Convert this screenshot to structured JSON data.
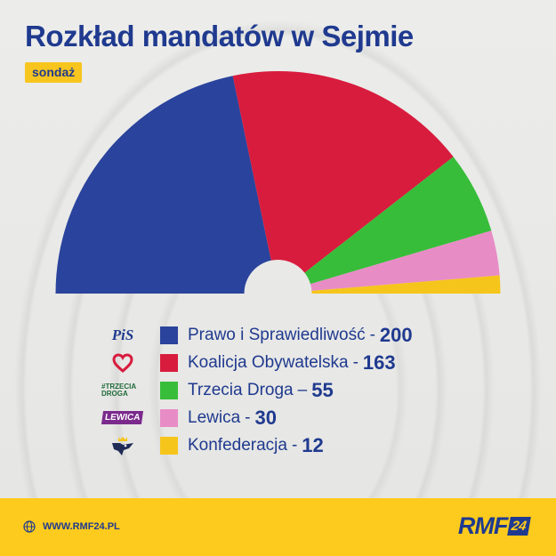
{
  "title": "Rozkład mandatów w Sejmie",
  "badge": "sondaż",
  "chart_data": {
    "type": "pie",
    "variant": "semicircle",
    "total": 460,
    "series": [
      {
        "name": "Prawo i Sprawiedliwość",
        "separator": "-",
        "value": 200,
        "color": "#2a439c",
        "logo_icon": "pis-logo",
        "logo_text": "PiS"
      },
      {
        "name": "Koalicja Obywatelska",
        "separator": "-",
        "value": 163,
        "color": "#d81c3e",
        "logo_icon": "ko-heart-logo",
        "logo_text": ""
      },
      {
        "name": "Trzecia Droga",
        "separator": "–",
        "value": 55,
        "color": "#37bd3a",
        "logo_icon": "trzecia-droga-logo",
        "logo_text": "#TRZECIA DROGA"
      },
      {
        "name": "Lewica",
        "separator": "-",
        "value": 30,
        "color": "#e88cc6",
        "logo_icon": "lewica-logo",
        "logo_text": "LEWICA"
      },
      {
        "name": "Konfederacja",
        "separator": "-",
        "value": 12,
        "color": "#f6c51c",
        "logo_icon": "konfederacja-logo",
        "logo_text": ""
      }
    ]
  },
  "footer": {
    "website": "WWW.RMF24.PL",
    "brand_main": "RMF",
    "brand_number": "24",
    "globe_icon": "globe-icon",
    "background": "#fccb1d"
  }
}
